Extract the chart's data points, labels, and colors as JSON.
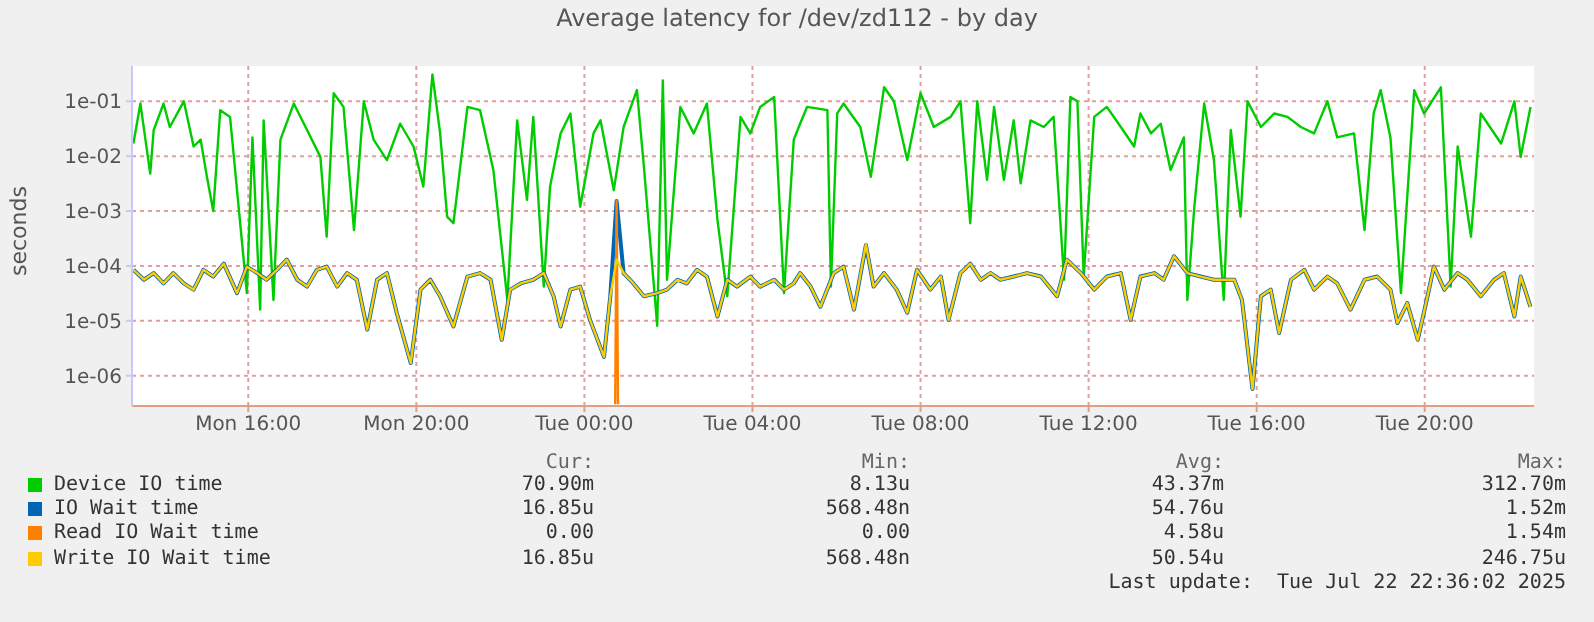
{
  "chart_data": {
    "type": "line",
    "title": "Average latency for /dev/zd112 - by day",
    "ylabel": "seconds",
    "log": "y",
    "grid": true,
    "legend": "bottom",
    "xlim": [
      "2025-07-21T13:14",
      "2025-07-22T22:36"
    ],
    "xticks": [
      {
        "value": "2025-07-21T16:00",
        "label": "Mon 16:00"
      },
      {
        "value": "2025-07-21T20:00",
        "label": "Mon 20:00"
      },
      {
        "value": "2025-07-22T00:00",
        "label": "Tue 00:00"
      },
      {
        "value": "2025-07-22T04:00",
        "label": "Tue 04:00"
      },
      {
        "value": "2025-07-22T08:00",
        "label": "Tue 08:00"
      },
      {
        "value": "2025-07-22T12:00",
        "label": "Tue 12:00"
      },
      {
        "value": "2025-07-22T16:00",
        "label": "Tue 16:00"
      },
      {
        "value": "2025-07-22T20:00",
        "label": "Tue 20:00"
      }
    ],
    "ylim": [
      2.8e-07,
      0.44
    ],
    "yticks": [
      {
        "value": 1e-06,
        "label": "1e-06"
      },
      {
        "value": 1e-05,
        "label": "1e-05"
      },
      {
        "value": 0.0001,
        "label": "1e-04"
      },
      {
        "value": 0.001,
        "label": "1e-03"
      },
      {
        "value": 0.01,
        "label": "1e-02"
      },
      {
        "value": 0.1,
        "label": "1e-01"
      }
    ],
    "annotations": [
      "Cur:",
      "Min:",
      "Avg:",
      "Max:",
      "70.90m",
      "8.13u",
      "43.37m",
      "312.70m",
      "16.85u",
      "568.48n",
      "54.76u",
      "1.52m",
      "0.00",
      "0.00",
      "4.58u",
      "1.54m",
      "16.85u",
      "568.48n",
      "50.54u",
      "246.75u",
      "Last update:  Tue Jul 22 22:36:02 2025"
    ],
    "x": [
      "2025-07-21T13:16",
      "2025-07-21T13:31",
      "2025-07-21T13:45",
      "2025-07-21T13:59",
      "2025-07-21T14:13",
      "2025-07-21T14:28",
      "2025-07-21T14:42",
      "2025-07-21T14:56",
      "2025-07-21T15:10",
      "2025-07-21T15:25",
      "2025-07-21T15:44",
      "2025-07-21T15:58",
      "2025-07-21T16:13",
      "2025-07-21T16:26",
      "2025-07-21T16:41",
      "2025-07-21T16:55",
      "2025-07-21T17:10",
      "2025-07-21T17:24",
      "2025-07-21T17:38",
      "2025-07-21T17:52",
      "2025-07-21T18:07",
      "2025-07-21T18:21",
      "2025-07-21T18:35",
      "2025-07-21T18:50",
      "2025-07-21T19:04",
      "2025-07-21T19:18",
      "2025-07-21T19:32",
      "2025-07-21T19:52",
      "2025-07-21T20:06",
      "2025-07-21T20:20",
      "2025-07-21T20:34",
      "2025-07-21T20:53",
      "2025-07-21T21:13",
      "2025-07-21T21:31",
      "2025-07-21T21:46",
      "2025-07-21T22:02",
      "2025-07-21T22:14",
      "2025-07-21T22:29",
      "2025-07-21T22:47",
      "2025-07-21T23:02",
      "2025-07-21T23:16",
      "2025-07-21T23:26",
      "2025-07-21T23:40",
      "2025-07-21T23:54",
      "2025-07-22T00:08",
      "2025-07-22T00:28",
      "2025-07-22T00:37",
      "2025-07-22T00:46",
      "2025-07-22T00:56",
      "2025-07-22T01:10",
      "2025-07-22T01:25",
      "2025-07-22T01:44",
      "2025-07-22T01:58",
      "2025-07-22T02:13",
      "2025-07-22T02:26",
      "2025-07-22T02:41",
      "2025-07-22T02:55",
      "2025-07-22T03:10",
      "2025-07-22T03:24",
      "2025-07-22T03:38",
      "2025-07-22T03:57",
      "2025-07-22T04:11",
      "2025-07-22T04:31",
      "2025-07-22T04:45",
      "2025-07-22T04:59",
      "2025-07-22T05:08",
      "2025-07-22T05:23",
      "2025-07-22T05:37",
      "2025-07-22T05:56",
      "2025-07-22T06:10",
      "2025-07-22T06:25",
      "2025-07-22T06:42",
      "2025-07-22T06:53",
      "2025-07-22T07:08",
      "2025-07-22T07:26",
      "2025-07-22T07:41",
      "2025-07-22T07:55",
      "2025-07-22T08:14",
      "2025-07-22T08:29",
      "2025-07-22T08:40",
      "2025-07-22T08:57",
      "2025-07-22T09:11",
      "2025-07-22T09:26",
      "2025-07-22T09:40",
      "2025-07-22T09:54",
      "2025-07-22T10:13",
      "2025-07-22T10:32",
      "2025-07-22T10:52",
      "2025-07-22T11:15",
      "2025-07-22T11:29",
      "2025-07-22T11:49",
      "2025-07-22T12:08",
      "2025-07-22T12:26",
      "2025-07-22T12:46",
      "2025-07-22T13:00",
      "2025-07-22T13:14",
      "2025-07-22T13:34",
      "2025-07-22T13:47",
      "2025-07-22T14:02",
      "2025-07-22T14:21",
      "2025-07-22T14:40",
      "2025-07-22T14:59",
      "2025-07-22T15:28",
      "2025-07-22T15:39",
      "2025-07-22T15:54",
      "2025-07-22T16:06",
      "2025-07-22T16:20",
      "2025-07-22T16:32",
      "2025-07-22T16:49",
      "2025-07-22T17:08",
      "2025-07-22T17:22",
      "2025-07-22T17:41",
      "2025-07-22T17:55",
      "2025-07-22T18:14",
      "2025-07-22T18:34",
      "2025-07-22T18:52",
      "2025-07-22T19:11",
      "2025-07-22T19:21",
      "2025-07-22T19:35",
      "2025-07-22T19:50",
      "2025-07-22T20:04",
      "2025-07-22T20:13",
      "2025-07-22T20:28",
      "2025-07-22T20:47",
      "2025-07-22T21:01",
      "2025-07-22T21:20",
      "2025-07-22T21:39",
      "2025-07-22T21:53",
      "2025-07-22T22:08",
      "2025-07-22T22:17",
      "2025-07-22T22:31"
    ],
    "series": [
      {
        "name": "Device IO time",
        "color": "#00cc00",
        "x": [
          "2025-07-21T13:16",
          "2025-07-21T13:26",
          "2025-07-21T13:40",
          "2025-07-21T13:45",
          "2025-07-21T13:59",
          "2025-07-21T14:08",
          "2025-07-21T14:28",
          "2025-07-21T14:42",
          "2025-07-21T14:52",
          "2025-07-21T15:01",
          "2025-07-21T15:10",
          "2025-07-21T15:20",
          "2025-07-21T15:34",
          "2025-07-21T15:58",
          "2025-07-21T16:06",
          "2025-07-21T16:17",
          "2025-07-21T16:22",
          "2025-07-21T16:36",
          "2025-07-21T16:46",
          "2025-07-21T17:05",
          "2025-07-21T17:24",
          "2025-07-21T17:43",
          "2025-07-21T17:52",
          "2025-07-21T18:02",
          "2025-07-21T18:16",
          "2025-07-21T18:31",
          "2025-07-21T18:45",
          "2025-07-21T18:59",
          "2025-07-21T19:18",
          "2025-07-21T19:37",
          "2025-07-21T19:56",
          "2025-07-21T20:10",
          "2025-07-21T20:23",
          "2025-07-21T20:34",
          "2025-07-21T20:44",
          "2025-07-21T20:53",
          "2025-07-21T21:13",
          "2025-07-21T21:31",
          "2025-07-21T21:50",
          "2025-07-21T22:10",
          "2025-07-21T22:24",
          "2025-07-21T22:38",
          "2025-07-21T22:47",
          "2025-07-21T23:02",
          "2025-07-21T23:11",
          "2025-07-21T23:26",
          "2025-07-21T23:40",
          "2025-07-21T23:54",
          "2025-07-22T00:13",
          "2025-07-22T00:23",
          "2025-07-22T00:42",
          "2025-07-22T00:56",
          "2025-07-22T01:15",
          "2025-07-22T01:25",
          "2025-07-22T01:44",
          "2025-07-22T01:52",
          "2025-07-22T01:58",
          "2025-07-22T02:17",
          "2025-07-22T02:36",
          "2025-07-22T02:55",
          "2025-07-22T03:10",
          "2025-07-22T03:24",
          "2025-07-22T03:43",
          "2025-07-22T03:57",
          "2025-07-22T04:11",
          "2025-07-22T04:31",
          "2025-07-22T04:45",
          "2025-07-22T04:59",
          "2025-07-22T05:08",
          "2025-07-22T05:18",
          "2025-07-22T05:47",
          "2025-07-22T05:52",
          "2025-07-22T06:01",
          "2025-07-22T06:10",
          "2025-07-22T06:34",
          "2025-07-22T06:49",
          "2025-07-22T07:08",
          "2025-07-22T07:22",
          "2025-07-22T07:41",
          "2025-07-22T08:00",
          "2025-07-22T08:19",
          "2025-07-22T08:43",
          "2025-07-22T08:57",
          "2025-07-22T09:11",
          "2025-07-22T09:21",
          "2025-07-22T09:35",
          "2025-07-22T09:45",
          "2025-07-22T09:59",
          "2025-07-22T10:13",
          "2025-07-22T10:23",
          "2025-07-22T10:37",
          "2025-07-22T10:56",
          "2025-07-22T11:10",
          "2025-07-22T11:25",
          "2025-07-22T11:34",
          "2025-07-22T11:44",
          "2025-07-22T11:53",
          "2025-07-22T12:08",
          "2025-07-22T12:26",
          "2025-07-22T12:46",
          "2025-07-22T13:05",
          "2025-07-22T13:14",
          "2025-07-22T13:29",
          "2025-07-22T13:43",
          "2025-07-22T13:57",
          "2025-07-22T14:16",
          "2025-07-22T14:21",
          "2025-07-22T14:31",
          "2025-07-22T14:45",
          "2025-07-22T14:59",
          "2025-07-22T15:13",
          "2025-07-22T15:23",
          "2025-07-22T15:37",
          "2025-07-22T15:47",
          "2025-07-22T16:06",
          "2025-07-22T16:25",
          "2025-07-22T16:44",
          "2025-07-22T17:03",
          "2025-07-22T17:22",
          "2025-07-22T17:41",
          "2025-07-22T17:55",
          "2025-07-22T18:19",
          "2025-07-22T18:34",
          "2025-07-22T18:47",
          "2025-07-22T18:57",
          "2025-07-22T19:11",
          "2025-07-22T19:26",
          "2025-07-22T19:45",
          "2025-07-22T19:59",
          "2025-07-22T20:23",
          "2025-07-22T20:37",
          "2025-07-22T20:47",
          "2025-07-22T21:06",
          "2025-07-22T21:20",
          "2025-07-22T21:49",
          "2025-07-22T22:08",
          "2025-07-22T22:17",
          "2025-07-22T22:31"
        ],
        "values": [
          0.017,
          0.091,
          0.0048,
          0.03,
          0.091,
          0.034,
          0.1,
          0.015,
          0.02,
          0.0042,
          0.001,
          0.069,
          0.052,
          3.2e-05,
          0.022,
          1.6e-05,
          0.045,
          2.4e-05,
          0.02,
          0.091,
          0.03,
          0.0097,
          0.00034,
          0.14,
          0.079,
          0.00045,
          0.1,
          0.02,
          0.0085,
          0.039,
          0.015,
          0.0028,
          0.31,
          0.026,
          0.00079,
          0.0006,
          0.079,
          0.069,
          0.0056,
          2.4e-05,
          0.045,
          0.0016,
          0.052,
          4.2e-05,
          0.0028,
          0.026,
          0.06,
          0.0012,
          0.026,
          0.045,
          0.0024,
          0.034,
          0.16,
          0.0064,
          8.1e-06,
          0.24,
          5.6e-05,
          0.079,
          0.026,
          0.091,
          0.00069,
          2.8e-05,
          0.052,
          0.026,
          0.079,
          0.12,
          3.2e-05,
          0.02,
          0.039,
          0.079,
          0.069,
          4.2e-05,
          0.06,
          0.091,
          0.034,
          0.0042,
          0.18,
          0.1,
          0.0085,
          0.14,
          0.034,
          0.052,
          0.1,
          0.0006,
          0.1,
          0.0037,
          0.079,
          0.0037,
          0.045,
          0.0032,
          0.045,
          0.034,
          0.052,
          5.6e-05,
          0.12,
          0.1,
          6.4e-05,
          0.052,
          0.079,
          0.034,
          0.015,
          0.06,
          0.026,
          0.039,
          0.0056,
          0.022,
          2.4e-05,
          0.0012,
          0.091,
          0.0085,
          2.4e-05,
          0.03,
          0.00079,
          0.1,
          0.034,
          0.06,
          0.052,
          0.034,
          0.026,
          0.1,
          0.022,
          0.026,
          0.00045,
          0.06,
          0.16,
          0.022,
          3.2e-05,
          0.16,
          0.06,
          0.18,
          4.2e-05,
          0.015,
          0.00034,
          0.06,
          0.017,
          0.1,
          0.0097,
          0.079
        ]
      },
      {
        "name": "IO Wait time",
        "color": "#0066b3",
        "values": [
          8.5e-05,
          5.6e-05,
          7.4e-05,
          4.8e-05,
          7.4e-05,
          4.8e-05,
          3.7e-05,
          8.5e-05,
          6.4e-05,
          0.00011,
          3.2e-05,
          9.7e-05,
          7.4e-05,
          5.6e-05,
          8.5e-05,
          0.00013,
          5.6e-05,
          4.2e-05,
          8.5e-05,
          9.7e-05,
          4.2e-05,
          7.4e-05,
          5.6e-05,
          6.9e-06,
          5.6e-05,
          7.4e-05,
          1.4e-05,
          1.7e-06,
          3.7e-05,
          5.6e-05,
          2.8e-05,
          7.9e-06,
          6.4e-05,
          7.4e-05,
          5.6e-05,
          4.5e-06,
          3.7e-05,
          4.8e-05,
          5.6e-05,
          7.4e-05,
          2.8e-05,
          7.9e-06,
          3.7e-05,
          4.2e-05,
          1.04e-05,
          2.2e-06,
          2.8e-05,
          0.00152,
          7.4e-05,
          4.8e-05,
          2.8e-05,
          3.2e-05,
          3.7e-05,
          5.6e-05,
          4.8e-05,
          8.5e-05,
          6.4e-05,
          1.2e-05,
          5.6e-05,
          4.2e-05,
          6.4e-05,
          4.2e-05,
          5.6e-05,
          3.7e-05,
          4.8e-05,
          7.4e-05,
          4.2e-05,
          1.8e-05,
          7.4e-05,
          9.7e-05,
          1.6e-05,
          0.00024,
          4.2e-05,
          7.4e-05,
          3.7e-05,
          1.4e-05,
          8.5e-05,
          3.7e-05,
          6.4e-05,
          1.04e-05,
          7.4e-05,
          0.00011,
          5.6e-05,
          7.4e-05,
          5.6e-05,
          6.4e-05,
          7.4e-05,
          6.4e-05,
          2.8e-05,
          0.00013,
          7.4e-05,
          3.7e-05,
          6.4e-05,
          7.4e-05,
          1.04e-05,
          6.4e-05,
          7.4e-05,
          5.6e-05,
          0.00015,
          7.4e-05,
          6.4e-05,
          5.6e-05,
          5.6e-05,
          2.4e-05,
          5.7e-07,
          2.8e-05,
          3.7e-05,
          6e-06,
          5.6e-05,
          8.5e-05,
          3.7e-05,
          6.4e-05,
          4.8e-05,
          1.6e-05,
          5.6e-05,
          6.4e-05,
          3.7e-05,
          9.1e-06,
          2.1e-05,
          4.5e-06,
          2.8e-05,
          9.7e-05,
          3.7e-05,
          7.4e-05,
          5.6e-05,
          2.8e-05,
          5.6e-05,
          7.4e-05,
          1.2e-05,
          6.4e-05,
          1.8e-05
        ]
      },
      {
        "name": "Read IO Wait time",
        "color": "#ff8000",
        "x": [
          "2025-07-22T00:44",
          "2025-07-22T00:46",
          "2025-07-22T00:48"
        ],
        "values": [
          3e-07,
          0.00154,
          3e-07
        ]
      },
      {
        "name": "Write IO Wait time",
        "color": "#ffcc00",
        "values": [
          8.5e-05,
          5.6e-05,
          7.4e-05,
          4.8e-05,
          7.4e-05,
          4.8e-05,
          3.7e-05,
          8.5e-05,
          6.4e-05,
          0.00011,
          3.2e-05,
          9.7e-05,
          7.4e-05,
          5.6e-05,
          8.5e-05,
          0.00013,
          5.6e-05,
          4.2e-05,
          8.5e-05,
          9.7e-05,
          4.2e-05,
          7.4e-05,
          5.6e-05,
          6.9e-06,
          5.6e-05,
          7.4e-05,
          1.4e-05,
          1.7e-06,
          3.7e-05,
          5.6e-05,
          2.8e-05,
          7.9e-06,
          6.4e-05,
          7.4e-05,
          5.6e-05,
          4.5e-06,
          3.7e-05,
          4.8e-05,
          5.6e-05,
          7.4e-05,
          2.8e-05,
          7.9e-06,
          3.7e-05,
          4.2e-05,
          1.04e-05,
          2.2e-06,
          2.8e-05,
          0.00013,
          7.4e-05,
          4.8e-05,
          2.8e-05,
          3.2e-05,
          3.7e-05,
          5.6e-05,
          4.8e-05,
          8.5e-05,
          6.4e-05,
          1.2e-05,
          5.6e-05,
          4.2e-05,
          6.4e-05,
          4.2e-05,
          5.6e-05,
          3.7e-05,
          4.8e-05,
          7.4e-05,
          4.2e-05,
          1.8e-05,
          7.4e-05,
          9.7e-05,
          1.6e-05,
          0.000247,
          4.2e-05,
          7.4e-05,
          3.7e-05,
          1.4e-05,
          8.5e-05,
          3.7e-05,
          6.4e-05,
          1.04e-05,
          7.4e-05,
          0.00011,
          5.6e-05,
          7.4e-05,
          5.6e-05,
          6.4e-05,
          7.4e-05,
          6.4e-05,
          2.8e-05,
          0.00013,
          7.4e-05,
          3.7e-05,
          6.4e-05,
          7.4e-05,
          1.04e-05,
          6.4e-05,
          7.4e-05,
          5.6e-05,
          0.00015,
          7.4e-05,
          6.4e-05,
          5.6e-05,
          5.6e-05,
          2.4e-05,
          5.7e-07,
          2.8e-05,
          3.7e-05,
          6e-06,
          5.6e-05,
          8.5e-05,
          3.7e-05,
          6.4e-05,
          4.8e-05,
          1.6e-05,
          5.6e-05,
          6.4e-05,
          3.7e-05,
          9.1e-06,
          2.1e-05,
          4.5e-06,
          2.8e-05,
          9.7e-05,
          3.7e-05,
          7.4e-05,
          5.6e-05,
          2.8e-05,
          5.6e-05,
          7.4e-05,
          1.2e-05,
          6.4e-05,
          1.8e-05
        ]
      }
    ]
  }
}
